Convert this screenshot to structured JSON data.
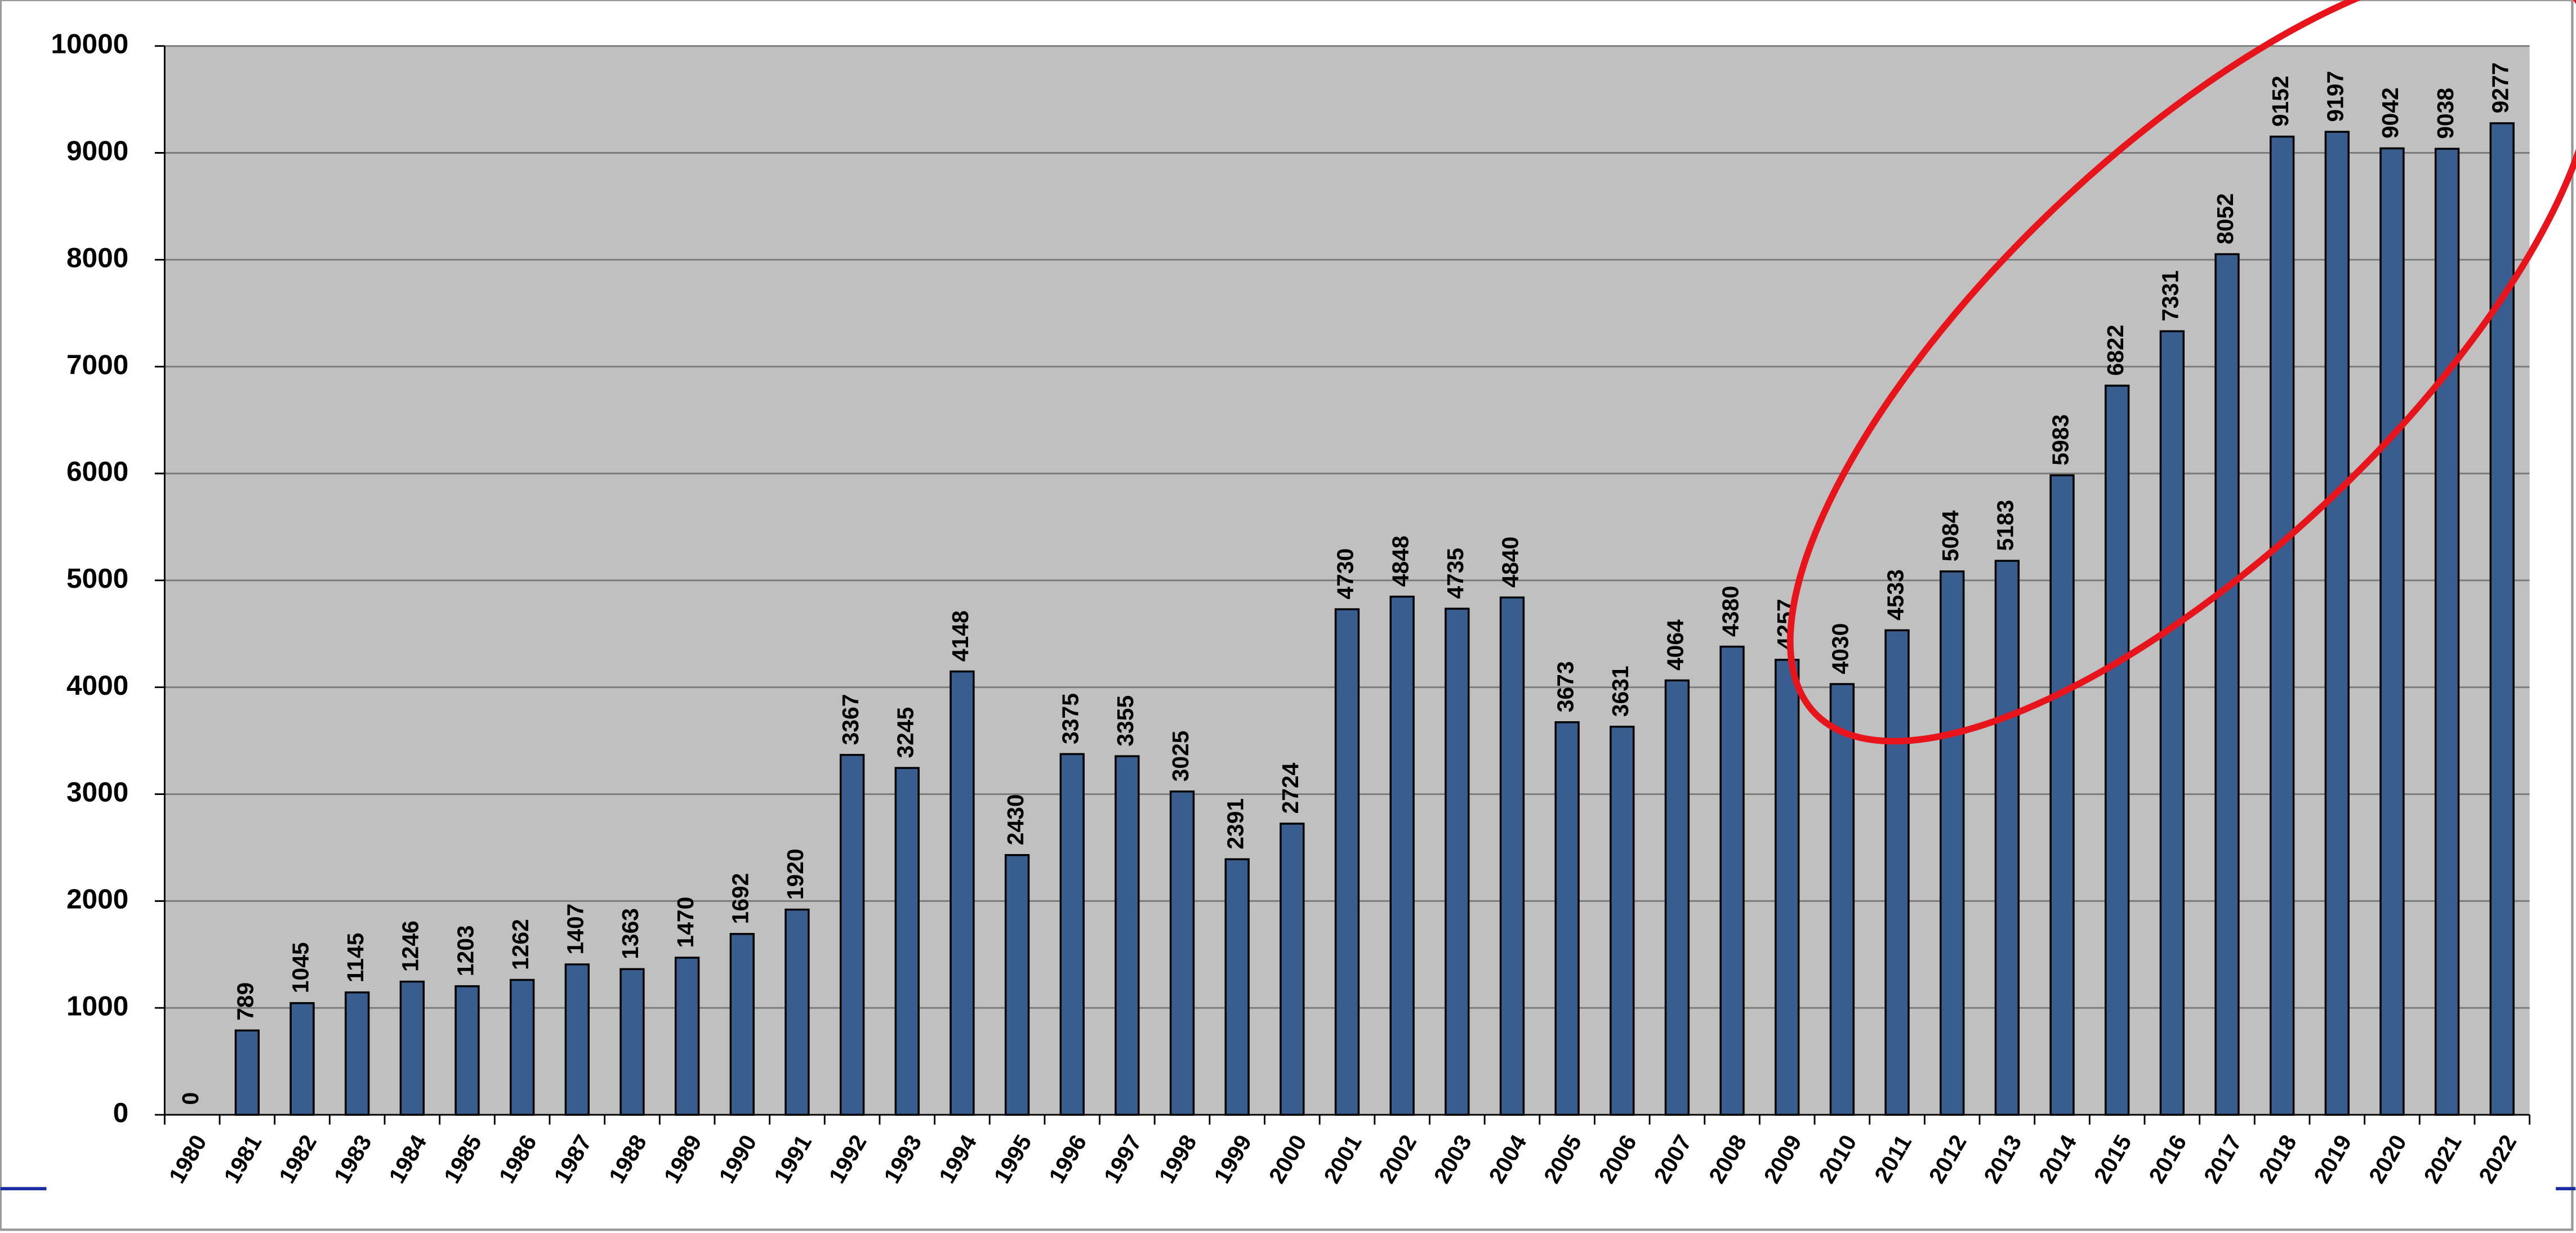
{
  "chart_data": {
    "type": "bar",
    "categories": [
      "1980",
      "1981",
      "1982",
      "1983",
      "1984",
      "1985",
      "1986",
      "1987",
      "1988",
      "1989",
      "1990",
      "1991",
      "1992",
      "1993",
      "1994",
      "1995",
      "1996",
      "1997",
      "1998",
      "1999",
      "2000",
      "2001",
      "2002",
      "2003",
      "2004",
      "2005",
      "2006",
      "2007",
      "2008",
      "2009",
      "2010",
      "2011",
      "2012",
      "2013",
      "2014",
      "2015",
      "2016",
      "2017",
      "2018",
      "2019",
      "2020",
      "2021",
      "2022"
    ],
    "values": [
      0,
      789,
      1045,
      1145,
      1246,
      1203,
      1262,
      1407,
      1363,
      1470,
      1692,
      1920,
      3367,
      3245,
      4148,
      2430,
      3375,
      3355,
      3025,
      2391,
      2724,
      4730,
      4848,
      4735,
      4840,
      3673,
      3631,
      4064,
      4380,
      4257,
      4030,
      4533,
      5084,
      5183,
      5983,
      6822,
      7331,
      8052,
      9152,
      9197,
      9042,
      9038,
      9277
    ],
    "color": "#3a5d8f",
    "ylim": [
      0,
      10000
    ],
    "yticks": [
      0,
      1000,
      2000,
      3000,
      4000,
      5000,
      6000,
      7000,
      8000,
      9000,
      10000
    ],
    "grid": true
  }
}
